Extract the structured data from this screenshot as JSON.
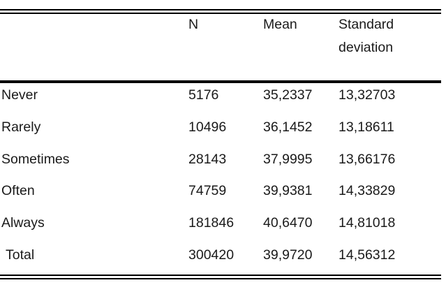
{
  "table": {
    "headers": [
      "",
      "N",
      "Mean",
      "Standard deviation"
    ],
    "rows": [
      {
        "label": "Never",
        "n": "5176",
        "mean": "35,2337",
        "sd": "13,32703"
      },
      {
        "label": "Rarely",
        "n": "10496",
        "mean": "36,1452",
        "sd": "13,18611"
      },
      {
        "label": "Sometimes",
        "n": "28143",
        "mean": "37,9995",
        "sd": "13,66176"
      },
      {
        "label": "Often",
        "n": "74759",
        "mean": "39,9381",
        "sd": "14,33829"
      },
      {
        "label": "Always",
        "n": "181846",
        "mean": "40,6470",
        "sd": "14,81018"
      },
      {
        "label": "Total",
        "n": "300420",
        "mean": "39,9720",
        "sd": "14,56312"
      }
    ]
  }
}
